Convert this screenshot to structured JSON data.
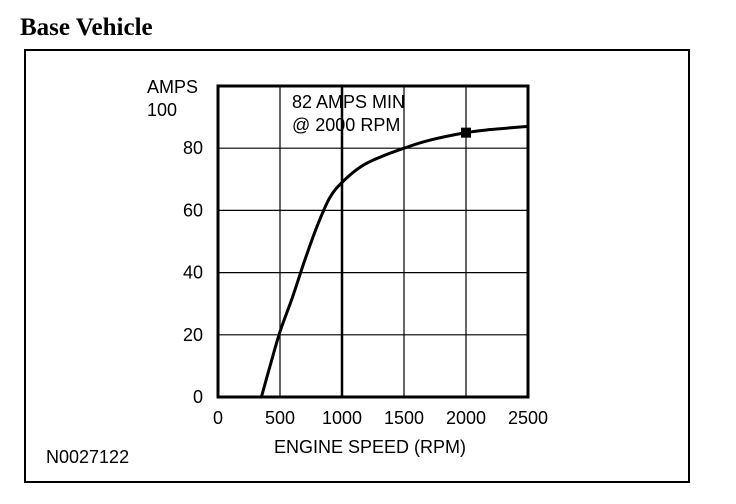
{
  "figure": {
    "heading": "Base Vehicle",
    "code": "N0027122"
  },
  "chart_data": {
    "type": "line",
    "xlabel": "ENGINE SPEED (RPM)",
    "ylabel_line1": "AMPS",
    "ylabel_line2": "100",
    "xlim": [
      0,
      2500
    ],
    "ylim": [
      0,
      100
    ],
    "x_ticks": [
      0,
      500,
      1000,
      1500,
      2000,
      2500
    ],
    "y_ticks": [
      0,
      20,
      40,
      60,
      80
    ],
    "grid": true,
    "series": [
      {
        "x": [
          350,
          420,
          500,
          600,
          700,
          800,
          900,
          1000,
          1150,
          1300,
          1500,
          1700,
          2000,
          2200,
          2500
        ],
        "values": [
          0,
          10,
          21,
          32,
          44,
          55,
          64,
          69,
          74,
          77,
          80,
          82.5,
          85,
          86,
          87
        ]
      }
    ],
    "annotation": {
      "line1": "82 AMPS MIN",
      "line2": "@ 2000 RPM",
      "marker_x": 2000,
      "marker_y": 85
    },
    "colors": {
      "line": "#000000",
      "grid": "#000000"
    }
  }
}
